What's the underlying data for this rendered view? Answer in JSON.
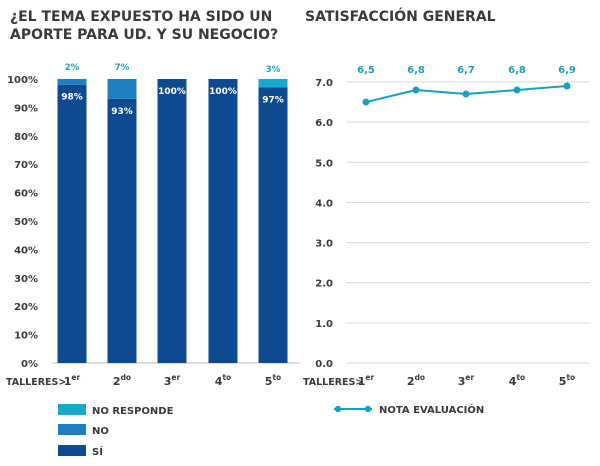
{
  "chart_data": [
    {
      "type": "bar",
      "stacked": true,
      "title_lines": [
        "¿EL TEMA EXPUESTO HA SIDO UN",
        "APORTE PARA UD. Y SU NEGOCIO?"
      ],
      "xlabel": "TALLERES>",
      "categories": [
        {
          "base": "1",
          "sup": "er"
        },
        {
          "base": "2",
          "sup": "do"
        },
        {
          "base": "3",
          "sup": "er"
        },
        {
          "base": "4",
          "sup": "to"
        },
        {
          "base": "5",
          "sup": "to"
        }
      ],
      "ylim": [
        0,
        100
      ],
      "yticks": [
        "0%",
        "10%",
        "20%",
        "30%",
        "40%",
        "50%",
        "60%",
        "70%",
        "80%",
        "90%",
        "100%"
      ],
      "grid": false,
      "legend_position": "bottom-left",
      "series": [
        {
          "name": "SÍ",
          "color": "#0d4a8f",
          "values": [
            98,
            93,
            100,
            100,
            97
          ],
          "labels": [
            "98%",
            "93%",
            "100%",
            "100%",
            "97%"
          ]
        },
        {
          "name": "NO",
          "color": "#1f7ec1",
          "values": [
            2,
            7,
            0,
            0,
            0
          ],
          "labels": [
            "2%",
            "7%",
            "",
            "",
            ""
          ]
        },
        {
          "name": "NO RESPONDE",
          "color": "#17a9c9",
          "values": [
            0,
            0,
            0,
            0,
            3
          ],
          "labels": [
            "",
            "",
            "",
            "",
            "3%"
          ]
        }
      ],
      "legend_order": [
        "NO RESPONDE",
        "NO",
        "SÍ"
      ]
    },
    {
      "type": "line",
      "title": "SATISFACCIÓN GENERAL",
      "xlabel": "TALLERES>",
      "categories": [
        {
          "base": "1",
          "sup": "er"
        },
        {
          "base": "2",
          "sup": "do"
        },
        {
          "base": "3",
          "sup": "er"
        },
        {
          "base": "4",
          "sup": "to"
        },
        {
          "base": "5",
          "sup": "to"
        }
      ],
      "ylim": [
        0,
        7
      ],
      "yticks": [
        "0.0",
        "1.0",
        "2.0",
        "3.0",
        "4.0",
        "5.0",
        "6.0",
        "7.0"
      ],
      "grid": true,
      "legend_position": "bottom",
      "series": [
        {
          "name": "NOTA EVALUACIÓN",
          "color": "#1a9fc4",
          "values": [
            6.5,
            6.8,
            6.7,
            6.8,
            6.9
          ],
          "labels": [
            "6,5",
            "6,8",
            "6,7",
            "6,8",
            "6,9"
          ]
        }
      ]
    }
  ]
}
